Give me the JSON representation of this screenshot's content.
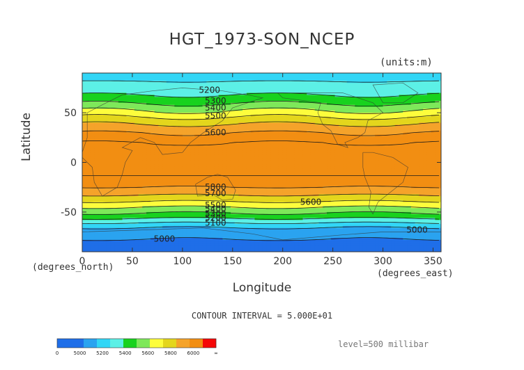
{
  "chart_data": {
    "type": "heatmap",
    "title": "HGT_1973-SON_NCEP",
    "units_label": "(units:m)",
    "xlabel": "Longitude",
    "ylabel": "Latitude",
    "x_unit_label": "(degrees_east)",
    "y_unit_label": "(degrees_north)",
    "xlim": [
      0,
      358
    ],
    "ylim": [
      -90,
      90
    ],
    "x_ticks": [
      0,
      50,
      100,
      150,
      200,
      250,
      300,
      350
    ],
    "y_ticks": [
      -50,
      0,
      50
    ],
    "contour_interval_label": "CONTOUR INTERVAL = 5.000E+01",
    "level_label": "level=500 millibar",
    "field": {
      "latitude": [
        90,
        80,
        70,
        65,
        60,
        55,
        50,
        45,
        40,
        35,
        30,
        20,
        10,
        0,
        -10,
        -20,
        -25,
        -30,
        -35,
        -40,
        -45,
        -50,
        -55,
        -60,
        -65,
        -70,
        -75,
        -80,
        -90
      ],
      "height_m": [
        5150,
        5210,
        5280,
        5330,
        5390,
        5460,
        5530,
        5610,
        5680,
        5740,
        5800,
        5850,
        5860,
        5860,
        5860,
        5830,
        5800,
        5740,
        5670,
        5590,
        5500,
        5420,
        5330,
        5220,
        5110,
        5050,
        5010,
        4990,
        4960
      ]
    },
    "contour_labels": [
      {
        "value": "5200",
        "lon": 127,
        "lat": 73
      },
      {
        "value": "5300",
        "lon": 133,
        "lat": 62
      },
      {
        "value": "5400",
        "lon": 133,
        "lat": 55
      },
      {
        "value": "5500",
        "lon": 133,
        "lat": 47
      },
      {
        "value": "5600",
        "lon": 133,
        "lat": 30
      },
      {
        "value": "5800",
        "lon": 133,
        "lat": -25
      },
      {
        "value": "5700",
        "lon": 133,
        "lat": -31
      },
      {
        "value": "5600",
        "lon": 228,
        "lat": -40
      },
      {
        "value": "5500",
        "lon": 133,
        "lat": -43
      },
      {
        "value": "5400",
        "lon": 133,
        "lat": -47
      },
      {
        "value": "5300",
        "lon": 133,
        "lat": -52
      },
      {
        "value": "5200",
        "lon": 133,
        "lat": -56
      },
      {
        "value": "5100",
        "lon": 133,
        "lat": -61
      },
      {
        "value": "5000",
        "lon": 82,
        "lat": -77
      },
      {
        "value": "5000",
        "lon": 334,
        "lat": -68
      }
    ],
    "colorbar": {
      "labels": [
        "0",
        "5000",
        "5200",
        "5400",
        "5600",
        "5800",
        "6000",
        "∞"
      ],
      "colors": [
        "#1f6ee8",
        "#1f6ee8",
        "#2aa3f0",
        "#32d6f6",
        "#5cf0e6",
        "#18d21e",
        "#7ee85a",
        "#fdfd3c",
        "#e4d61c",
        "#f5a32a",
        "#f28e12",
        "#f50707"
      ]
    },
    "colors": {
      "deep_blue": "#1f6ee8",
      "blue": "#2aa3f0",
      "light_blue": "#32d6f6",
      "cyan": "#5cf0e6",
      "green": "#18d21e",
      "light_green": "#7ee85a",
      "yellow": "#fdfd3c",
      "gold": "#e4d61c",
      "orange": "#f5a32a",
      "dark_orange": "#f28e12",
      "red": "#f50707"
    }
  }
}
